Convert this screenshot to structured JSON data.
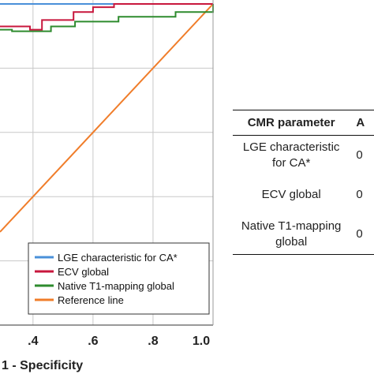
{
  "chart_data": {
    "type": "line",
    "xlabel": "1 - Specificity",
    "ylabel": "",
    "xlim": [
      0.29,
      1.0
    ],
    "ylim": [
      0.0,
      1.0
    ],
    "xticks": [
      ".4",
      ".6",
      ".8",
      "1.0"
    ],
    "xtick_values": [
      0.4,
      0.6,
      0.8,
      1.0
    ],
    "grid": true,
    "legend_placement": "bottom-right",
    "series": [
      {
        "name": "LGE characteristic for CA*",
        "color": "#4a90d9",
        "x": [
          0.29,
          0.43,
          0.43,
          1.0
        ],
        "y": [
          1.0,
          1.0,
          1.0,
          1.0
        ]
      },
      {
        "name": "ECV global",
        "color": "#c8173d",
        "x": [
          0.29,
          0.39,
          0.39,
          0.43,
          0.43,
          0.535,
          0.535,
          0.6,
          0.6,
          0.67,
          0.67,
          1.0
        ],
        "y": [
          0.93,
          0.93,
          0.92,
          0.92,
          0.95,
          0.95,
          0.975,
          0.975,
          0.99,
          0.99,
          1.0,
          1.0
        ]
      },
      {
        "name": "Native T1-mapping global",
        "color": "#2e8b2e",
        "x": [
          0.29,
          0.33,
          0.33,
          0.46,
          0.46,
          0.54,
          0.54,
          0.685,
          0.685,
          0.875,
          0.875,
          1.0,
          1.0
        ],
        "y": [
          0.92,
          0.92,
          0.915,
          0.915,
          0.93,
          0.93,
          0.945,
          0.945,
          0.96,
          0.96,
          0.975,
          0.975,
          1.0
        ]
      },
      {
        "name": "Reference line",
        "color": "#f07d2a",
        "x": [
          0.29,
          1.0
        ],
        "y": [
          0.29,
          1.0
        ]
      }
    ]
  },
  "table": {
    "headers": [
      "CMR parameter",
      "A"
    ],
    "rows": [
      [
        "LGE characteristic for CA*",
        "0"
      ],
      [
        "ECV global",
        "0"
      ],
      [
        "Native T1-mapping global",
        "0"
      ]
    ]
  }
}
